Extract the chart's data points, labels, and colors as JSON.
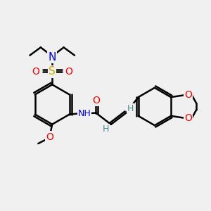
{
  "bg_color": "#f0f0f0",
  "atom_colors": {
    "C": "#000000",
    "N": "#0000ff",
    "O": "#ff0000",
    "S": "#ccaa00",
    "H": "#4a8a8a"
  },
  "bond_color": "#000000",
  "bond_width": 1.8,
  "figsize": [
    3.0,
    3.0
  ],
  "dpi": 100
}
